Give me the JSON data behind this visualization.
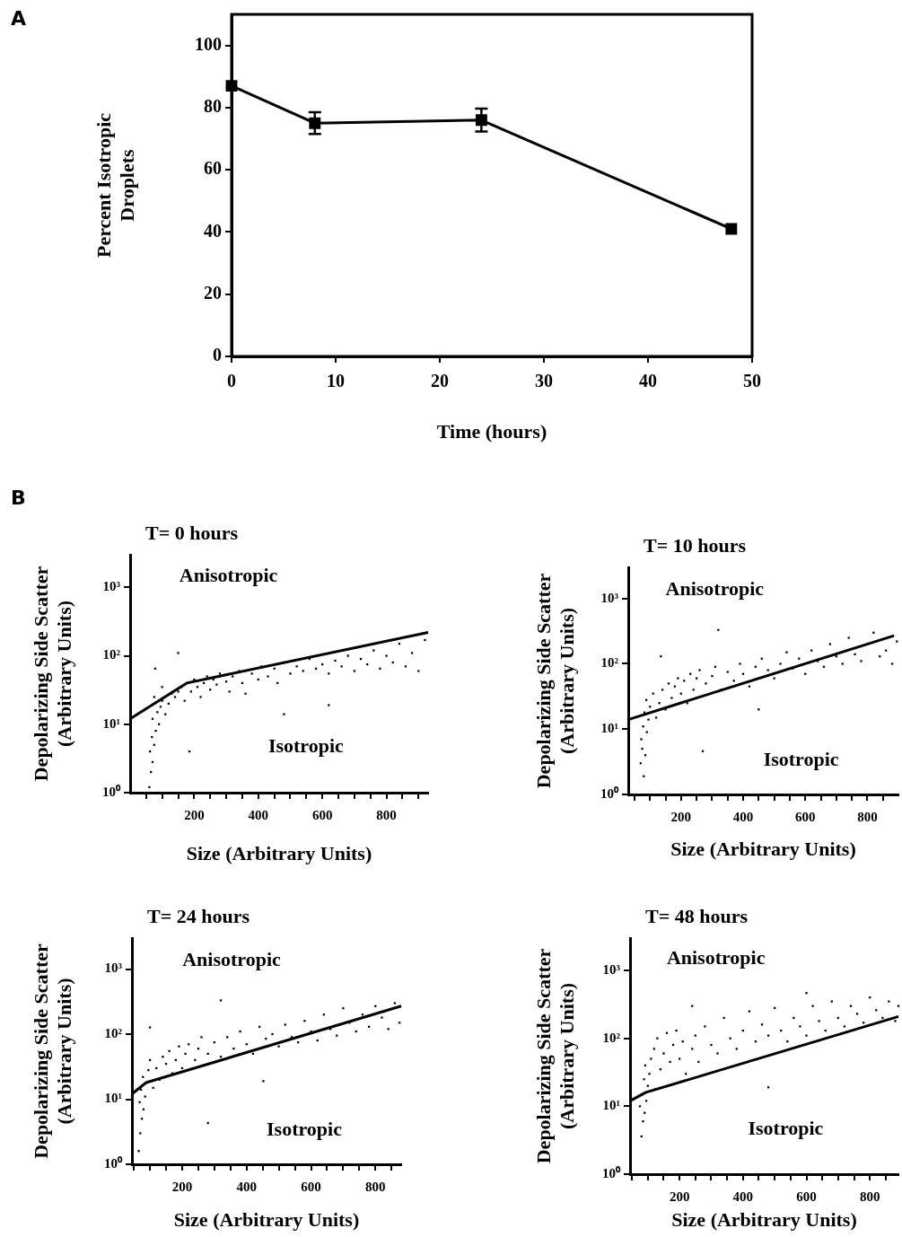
{
  "chart_data": [
    {
      "type": "line",
      "xlabel": "Time (hours)",
      "ylabel": "Percent Isotropic Droplets",
      "annotations": [
        "A"
      ],
      "x": [
        0,
        8,
        24,
        48
      ],
      "values": [
        87,
        75,
        76,
        41
      ],
      "errors": [
        null,
        3.5,
        3.7,
        null
      ],
      "color": "#000000",
      "marker": "square",
      "line_style": "solid",
      "xlim": [
        0,
        50
      ],
      "ylim": [
        0,
        110
      ],
      "xticks": [
        0,
        10,
        20,
        30,
        40,
        50
      ],
      "yticks": [
        0,
        20,
        40,
        60,
        80,
        100
      ]
    },
    {
      "type": "scatter",
      "title": "T= 0 hours",
      "xlabel": "Size (Arbitrary Units)",
      "ylabel": "Depolarizing Side Scatter (Arbitrary Units)",
      "annotations": [
        "B",
        "Anisotropic",
        "Isotropic"
      ],
      "log": "y",
      "xlim": [
        0,
        930
      ],
      "ylim": [
        1,
        3000
      ],
      "xticks": [
        {
          "value": 50,
          "label": null
        },
        {
          "value": 100,
          "label": null
        },
        {
          "value": 150,
          "label": null
        },
        200,
        {
          "value": 250,
          "label": null
        },
        {
          "value": 300,
          "label": null
        },
        {
          "value": 350,
          "label": null
        },
        400,
        {
          "value": 450,
          "label": null
        },
        {
          "value": 500,
          "label": null
        },
        {
          "value": 550,
          "label": null
        },
        600,
        {
          "value": 650,
          "label": null
        },
        {
          "value": 700,
          "label": null
        },
        {
          "value": 750,
          "label": null
        },
        800,
        {
          "value": 850,
          "label": null
        },
        {
          "value": 900,
          "label": null
        }
      ],
      "yticks": [
        {
          "value": 1,
          "label": "10⁰"
        },
        {
          "value": 10,
          "label": "10¹"
        },
        {
          "value": 100,
          "label": "10²"
        },
        {
          "value": 1000,
          "label": "10³"
        }
      ],
      "series": [
        {
          "type": "scatter",
          "marker": "square",
          "color": "#000000",
          "x": [
            60,
            65,
            70,
            62,
            75,
            68,
            80,
            90,
            70,
            85,
            95,
            100,
            75,
            110,
            120,
            130,
            140,
            150,
            160,
            170,
            180,
            190,
            200,
            210,
            220,
            230,
            240,
            250,
            260,
            270,
            280,
            300,
            310,
            320,
            340,
            350,
            360,
            380,
            400,
            410,
            430,
            450,
            460,
            480,
            500,
            520,
            540,
            560,
            580,
            600,
            620,
            640,
            660,
            680,
            700,
            720,
            740,
            760,
            780,
            800,
            820,
            840,
            860,
            880,
            900,
            920,
            100,
            185,
            150,
            78,
            620,
            480
          ],
          "values": [
            1.2,
            2,
            2.8,
            4,
            5,
            6.5,
            8,
            10,
            12,
            15,
            18,
            22,
            25,
            14,
            20,
            28,
            25,
            30,
            35,
            22,
            40,
            30,
            45,
            35,
            25,
            40,
            50,
            32,
            45,
            38,
            55,
            42,
            30,
            50,
            60,
            40,
            28,
            55,
            45,
            70,
            50,
            65,
            40,
            80,
            55,
            70,
            60,
            90,
            65,
            75,
            55,
            85,
            70,
            100,
            60,
            90,
            75,
            120,
            65,
            100,
            80,
            150,
            70,
            110,
            60,
            170,
            35,
            4,
            110,
            65,
            19,
            14
          ]
        },
        {
          "type": "line",
          "marker": "none",
          "color": "#000000",
          "x": [
            0,
            177,
            930
          ],
          "values": [
            12,
            40,
            220
          ]
        }
      ]
    },
    {
      "type": "scatter",
      "title": "T= 10 hours",
      "xlabel": "Size (Arbitrary Units)",
      "ylabel": "Depolarizing Side Scatter (Arbitrary Units)",
      "annotations": [
        "Anisotropic",
        "Isotropic"
      ],
      "log": "y",
      "xlim": [
        30,
        900
      ],
      "ylim": [
        1,
        3000
      ],
      "xticks": [
        {
          "value": 50,
          "label": null
        },
        {
          "value": 100,
          "label": null
        },
        {
          "value": 150,
          "label": null
        },
        200,
        {
          "value": 250,
          "label": null
        },
        {
          "value": 300,
          "label": null
        },
        {
          "value": 350,
          "label": null
        },
        400,
        {
          "value": 450,
          "label": null
        },
        {
          "value": 500,
          "label": null
        },
        {
          "value": 550,
          "label": null
        },
        600,
        {
          "value": 650,
          "label": null
        },
        {
          "value": 700,
          "label": null
        },
        {
          "value": 750,
          "label": null
        },
        800,
        {
          "value": 850,
          "label": null
        }
      ],
      "yticks": [
        {
          "value": 1,
          "label": "10⁰"
        },
        {
          "value": 10,
          "label": "10¹"
        },
        {
          "value": 100,
          "label": "10²"
        },
        {
          "value": 1000,
          "label": "10³"
        }
      ],
      "series": [
        {
          "type": "scatter",
          "marker": "square",
          "color": "#000000",
          "x": [
            70,
            75,
            80,
            85,
            72,
            90,
            78,
            95,
            82,
            100,
            88,
            110,
            120,
            130,
            135,
            140,
            150,
            160,
            170,
            180,
            190,
            200,
            210,
            220,
            230,
            240,
            250,
            260,
            270,
            280,
            300,
            310,
            320,
            330,
            350,
            370,
            390,
            400,
            420,
            440,
            450,
            460,
            480,
            500,
            520,
            540,
            560,
            580,
            600,
            620,
            640,
            660,
            680,
            700,
            720,
            740,
            760,
            780,
            800,
            820,
            840,
            860,
            880,
            895
          ],
          "values": [
            3,
            5,
            1.9,
            4,
            7,
            9,
            11,
            14,
            18,
            22,
            28,
            35,
            15,
            25,
            130,
            40,
            20,
            50,
            30,
            45,
            60,
            35,
            55,
            25,
            70,
            40,
            60,
            80,
            4.6,
            50,
            65,
            90,
            330,
            40,
            75,
            55,
            100,
            70,
            45,
            90,
            20,
            120,
            80,
            60,
            100,
            150,
            85,
            120,
            70,
            160,
            110,
            90,
            200,
            130,
            100,
            250,
            140,
            110,
            200,
            300,
            130,
            160,
            100,
            220
          ]
        },
        {
          "type": "line",
          "marker": "none",
          "color": "#000000",
          "x": [
            30,
            886
          ],
          "values": [
            14,
            270
          ]
        }
      ]
    },
    {
      "type": "scatter",
      "title": "T= 24 hours",
      "xlabel": "Size (Arbitrary Units)",
      "ylabel": "Depolarizing Side Scatter (Arbitrary Units)",
      "annotations": [
        "Anisotropic",
        "Isotropic"
      ],
      "log": "y",
      "xlim": [
        44,
        880
      ],
      "ylim": [
        1,
        3000
      ],
      "xticks": [
        {
          "value": 50,
          "label": null
        },
        {
          "value": 100,
          "label": null
        },
        {
          "value": 150,
          "label": null
        },
        200,
        {
          "value": 250,
          "label": null
        },
        {
          "value": 300,
          "label": null
        },
        {
          "value": 350,
          "label": null
        },
        400,
        {
          "value": 450,
          "label": null
        },
        {
          "value": 500,
          "label": null
        },
        {
          "value": 550,
          "label": null
        },
        600,
        {
          "value": 650,
          "label": null
        },
        {
          "value": 700,
          "label": null
        },
        {
          "value": 750,
          "label": null
        },
        800,
        {
          "value": 850,
          "label": null
        }
      ],
      "yticks": [
        {
          "value": 1,
          "label": "10⁰"
        },
        {
          "value": 10,
          "label": "10¹"
        },
        {
          "value": 100,
          "label": "10²"
        },
        {
          "value": 1000,
          "label": "10³"
        }
      ],
      "series": [
        {
          "type": "scatter",
          "marker": "square",
          "color": "#000000",
          "x": [
            65,
            70,
            75,
            80,
            68,
            85,
            72,
            90,
            78,
            95,
            100,
            110,
            100,
            120,
            130,
            140,
            150,
            160,
            170,
            180,
            190,
            200,
            210,
            220,
            240,
            250,
            260,
            280,
            280,
            300,
            320,
            320,
            340,
            360,
            380,
            400,
            420,
            440,
            452,
            460,
            480,
            500,
            520,
            540,
            560,
            580,
            600,
            620,
            640,
            660,
            680,
            700,
            720,
            740,
            760,
            780,
            800,
            820,
            840,
            860,
            875
          ],
          "values": [
            1.6,
            3,
            5,
            7,
            9,
            11,
            14,
            18,
            22,
            28,
            40,
            15,
            127,
            30,
            20,
            45,
            35,
            55,
            25,
            40,
            65,
            30,
            50,
            70,
            40,
            60,
            90,
            4.3,
            50,
            75,
            330,
            45,
            90,
            60,
            110,
            70,
            50,
            130,
            19,
            85,
            100,
            65,
            140,
            90,
            75,
            160,
            110,
            80,
            200,
            120,
            95,
            250,
            150,
            110,
            200,
            130,
            270,
            180,
            120,
            300,
            150
          ]
        },
        {
          "type": "line",
          "marker": "none",
          "color": "#000000",
          "x": [
            44,
            88,
            880
          ],
          "values": [
            12,
            18,
            270
          ]
        }
      ]
    },
    {
      "type": "scatter",
      "title": "T= 48 hours",
      "xlabel": "Size (Arbitrary Units)",
      "ylabel": "Depolarizing Side Scatter (Arbitrary Units)",
      "annotations": [
        "Anisotropic",
        "Isotropic"
      ],
      "log": "y",
      "xlim": [
        44,
        890
      ],
      "ylim": [
        1,
        3000
      ],
      "xticks": [
        {
          "value": 50,
          "label": null
        },
        {
          "value": 100,
          "label": null
        },
        {
          "value": 150,
          "label": null
        },
        200,
        {
          "value": 250,
          "label": null
        },
        {
          "value": 300,
          "label": null
        },
        {
          "value": 350,
          "label": null
        },
        400,
        {
          "value": 450,
          "label": null
        },
        {
          "value": 500,
          "label": null
        },
        {
          "value": 550,
          "label": null
        },
        600,
        {
          "value": 650,
          "label": null
        },
        {
          "value": 700,
          "label": null
        },
        {
          "value": 750,
          "label": null
        },
        800,
        {
          "value": 850,
          "label": null
        }
      ],
      "yticks": [
        {
          "value": 1,
          "label": "10⁰"
        },
        {
          "value": 10,
          "label": "10¹"
        },
        {
          "value": 100,
          "label": "10²"
        },
        {
          "value": 1000,
          "label": "10³"
        }
      ],
      "series": [
        {
          "type": "scatter",
          "marker": "square",
          "color": "#000000",
          "x": [
            80,
            85,
            90,
            75,
            95,
            82,
            100,
            88,
            105,
            92,
            110,
            120,
            125,
            130,
            140,
            150,
            160,
            170,
            180,
            190,
            200,
            210,
            220,
            240,
            240,
            250,
            260,
            280,
            300,
            320,
            340,
            360,
            380,
            400,
            420,
            440,
            460,
            480,
            480,
            500,
            520,
            540,
            560,
            580,
            600,
            600,
            620,
            640,
            660,
            680,
            700,
            720,
            740,
            760,
            780,
            800,
            820,
            840,
            860,
            880,
            890
          ],
          "values": [
            3.6,
            6,
            8,
            10,
            12,
            15,
            20,
            25,
            30,
            40,
            50,
            70,
            18,
            100,
            35,
            60,
            120,
            45,
            80,
            130,
            50,
            90,
            30,
            300,
            70,
            110,
            45,
            150,
            80,
            60,
            200,
            100,
            70,
            130,
            250,
            90,
            160,
            19,
            110,
            280,
            130,
            90,
            200,
            150,
            465,
            110,
            300,
            180,
            130,
            350,
            200,
            150,
            300,
            230,
            170,
            400,
            260,
            200,
            350,
            180,
            300
          ]
        },
        {
          "type": "line",
          "marker": "none",
          "color": "#000000",
          "x": [
            44,
            94,
            890
          ],
          "values": [
            12,
            16,
            210
          ]
        }
      ]
    }
  ]
}
